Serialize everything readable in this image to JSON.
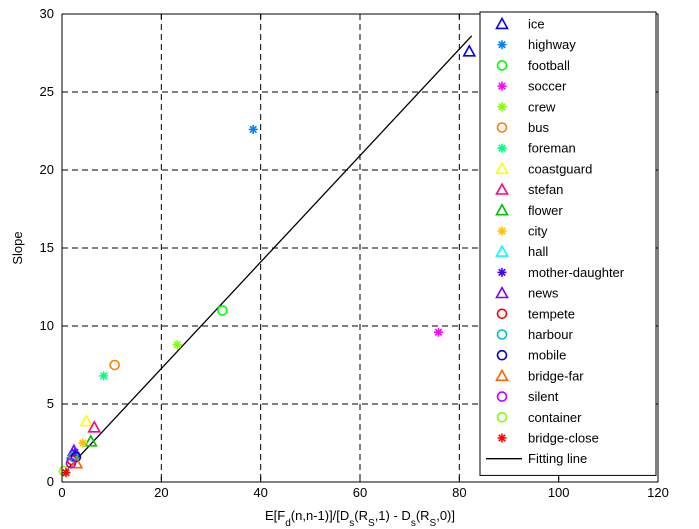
{
  "chart_data": {
    "type": "scatter",
    "xlabel": "E[F_d(n,n-1)]/[D_s(R_S,1) - D_s(R_S,0)]",
    "ylabel": "Slope",
    "xlim": [
      0,
      120
    ],
    "ylim": [
      0,
      30
    ],
    "x_ticks": [
      0,
      20,
      40,
      60,
      80,
      100,
      120
    ],
    "y_ticks": [
      0,
      5,
      10,
      15,
      20,
      25,
      30
    ],
    "grid": true,
    "legend_position": "top-right",
    "series": [
      {
        "name": "ice",
        "marker": "triangle",
        "color": "#0000ff",
        "points": [
          [
            82.0,
            27.6
          ]
        ]
      },
      {
        "name": "highway",
        "marker": "asterisk",
        "color": "#0080ff",
        "points": [
          [
            38.5,
            22.6
          ]
        ]
      },
      {
        "name": "football",
        "marker": "circle",
        "color": "#00ff00",
        "points": [
          [
            32.3,
            11.0
          ]
        ]
      },
      {
        "name": "soccer",
        "marker": "asterisk",
        "color": "#ff00ff",
        "points": [
          [
            75.8,
            9.6
          ]
        ]
      },
      {
        "name": "crew",
        "marker": "asterisk",
        "color": "#80ff00",
        "points": [
          [
            23.2,
            8.8
          ]
        ]
      },
      {
        "name": "bus",
        "marker": "circle",
        "color": "#ff8000",
        "points": [
          [
            10.6,
            7.5
          ]
        ]
      },
      {
        "name": "foreman",
        "marker": "asterisk",
        "color": "#00ff80",
        "points": [
          [
            8.4,
            6.8
          ]
        ]
      },
      {
        "name": "coastguard",
        "marker": "triangle",
        "color": "#ffff00",
        "points": [
          [
            4.9,
            3.9
          ]
        ]
      },
      {
        "name": "stefan",
        "marker": "triangle",
        "color": "#ff0080",
        "points": [
          [
            6.5,
            3.5
          ]
        ]
      },
      {
        "name": "flower",
        "marker": "triangle",
        "color": "#00c000",
        "points": [
          [
            5.8,
            2.6
          ]
        ]
      },
      {
        "name": "city",
        "marker": "asterisk",
        "color": "#ffc000",
        "points": [
          [
            4.2,
            2.5
          ]
        ]
      },
      {
        "name": "hall",
        "marker": "triangle",
        "color": "#00ffff",
        "points": [
          [
            2.1,
            1.8
          ]
        ]
      },
      {
        "name": "mother-daughter",
        "marker": "asterisk",
        "color": "#4000ff",
        "points": [
          [
            2.6,
            1.9
          ]
        ]
      },
      {
        "name": "news",
        "marker": "triangle",
        "color": "#8000ff",
        "points": [
          [
            2.4,
            2.0
          ]
        ]
      },
      {
        "name": "tempete",
        "marker": "circle",
        "color": "#ff0000",
        "points": [
          [
            2.0,
            1.4
          ]
        ]
      },
      {
        "name": "harbour",
        "marker": "circle",
        "color": "#00c0c0",
        "points": [
          [
            2.3,
            1.6
          ]
        ]
      },
      {
        "name": "mobile",
        "marker": "circle",
        "color": "#0000cc",
        "points": [
          [
            2.8,
            1.6
          ]
        ]
      },
      {
        "name": "bridge-far",
        "marker": "triangle",
        "color": "#ff6000",
        "points": [
          [
            2.9,
            1.2
          ]
        ]
      },
      {
        "name": "silent",
        "marker": "circle",
        "color": "#c000ff",
        "points": [
          [
            1.8,
            1.2
          ]
        ]
      },
      {
        "name": "container",
        "marker": "circle",
        "color": "#80ff00",
        "points": [
          [
            0.4,
            0.7
          ]
        ]
      },
      {
        "name": "bridge-close",
        "marker": "asterisk",
        "color": "#ff0000",
        "points": [
          [
            0.8,
            0.6
          ]
        ]
      }
    ],
    "fitting_line": {
      "name": "Fitting line",
      "color": "#000000",
      "from": [
        0.3,
        0.55
      ],
      "to": [
        82.5,
        28.6
      ]
    }
  }
}
